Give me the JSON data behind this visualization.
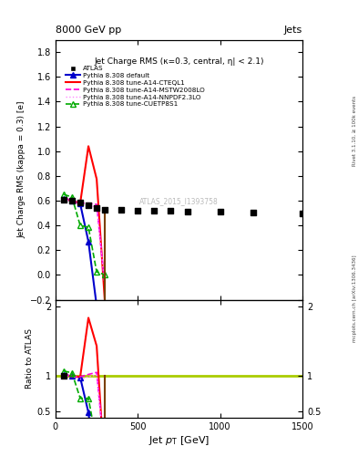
{
  "title_top": "8000 GeV pp",
  "title_right": "Jets",
  "plot_title": "Jet Charge RMS (κ=0.3, central, η| < 2.1)",
  "ylabel_main": "Jet Charge RMS (kappa = 0.3) [e]",
  "ylabel_ratio": "Ratio to ATLAS",
  "xlabel": "Jet p_{T} [GeV]",
  "watermark": "ATLAS_2015_I1393758",
  "right_label": "mcplots.cern.ch [arXiv:1306.3436]",
  "right_label2": "Rivet 3.1.10, ≥ 100k events",
  "atlas_x": [
    50,
    100,
    150,
    200,
    250,
    300,
    400,
    500,
    600,
    700,
    800,
    1000,
    1200,
    1500
  ],
  "atlas_y": [
    0.605,
    0.6,
    0.585,
    0.565,
    0.54,
    0.53,
    0.525,
    0.52,
    0.52,
    0.52,
    0.515,
    0.51,
    0.505,
    0.5
  ],
  "default_x": [
    50,
    100,
    150,
    200,
    250
  ],
  "default_y": [
    0.615,
    0.6,
    0.575,
    0.27,
    -0.25
  ],
  "cteql1_x": [
    50,
    100,
    150,
    200,
    250,
    300
  ],
  "cteql1_y": [
    0.615,
    0.6,
    0.58,
    1.04,
    0.775,
    -0.22
  ],
  "mstw_x": [
    50,
    100,
    150,
    200,
    250,
    300
  ],
  "mstw_y": [
    0.625,
    0.6,
    0.58,
    0.58,
    0.57,
    -0.09
  ],
  "nnpdf_x": [
    50,
    100,
    150,
    200,
    250,
    300
  ],
  "nnpdf_y": [
    0.605,
    0.6,
    0.56,
    0.56,
    0.55,
    -0.09
  ],
  "cuetp_x": [
    50,
    100,
    150,
    200,
    250,
    300
  ],
  "cuetp_y": [
    0.65,
    0.63,
    0.4,
    0.385,
    0.025,
    0.002
  ],
  "xlim": [
    0,
    1500
  ],
  "ylim_main": [
    -0.2,
    1.9
  ],
  "ylim_ratio": [
    0.4,
    2.1
  ],
  "colors": {
    "atlas": "#000000",
    "default": "#0000cc",
    "cteql1": "#ff0000",
    "mstw": "#ff00dd",
    "nnpdf": "#ff88ff",
    "cuetp": "#00aa00",
    "ratio_line": "#aacc00"
  }
}
